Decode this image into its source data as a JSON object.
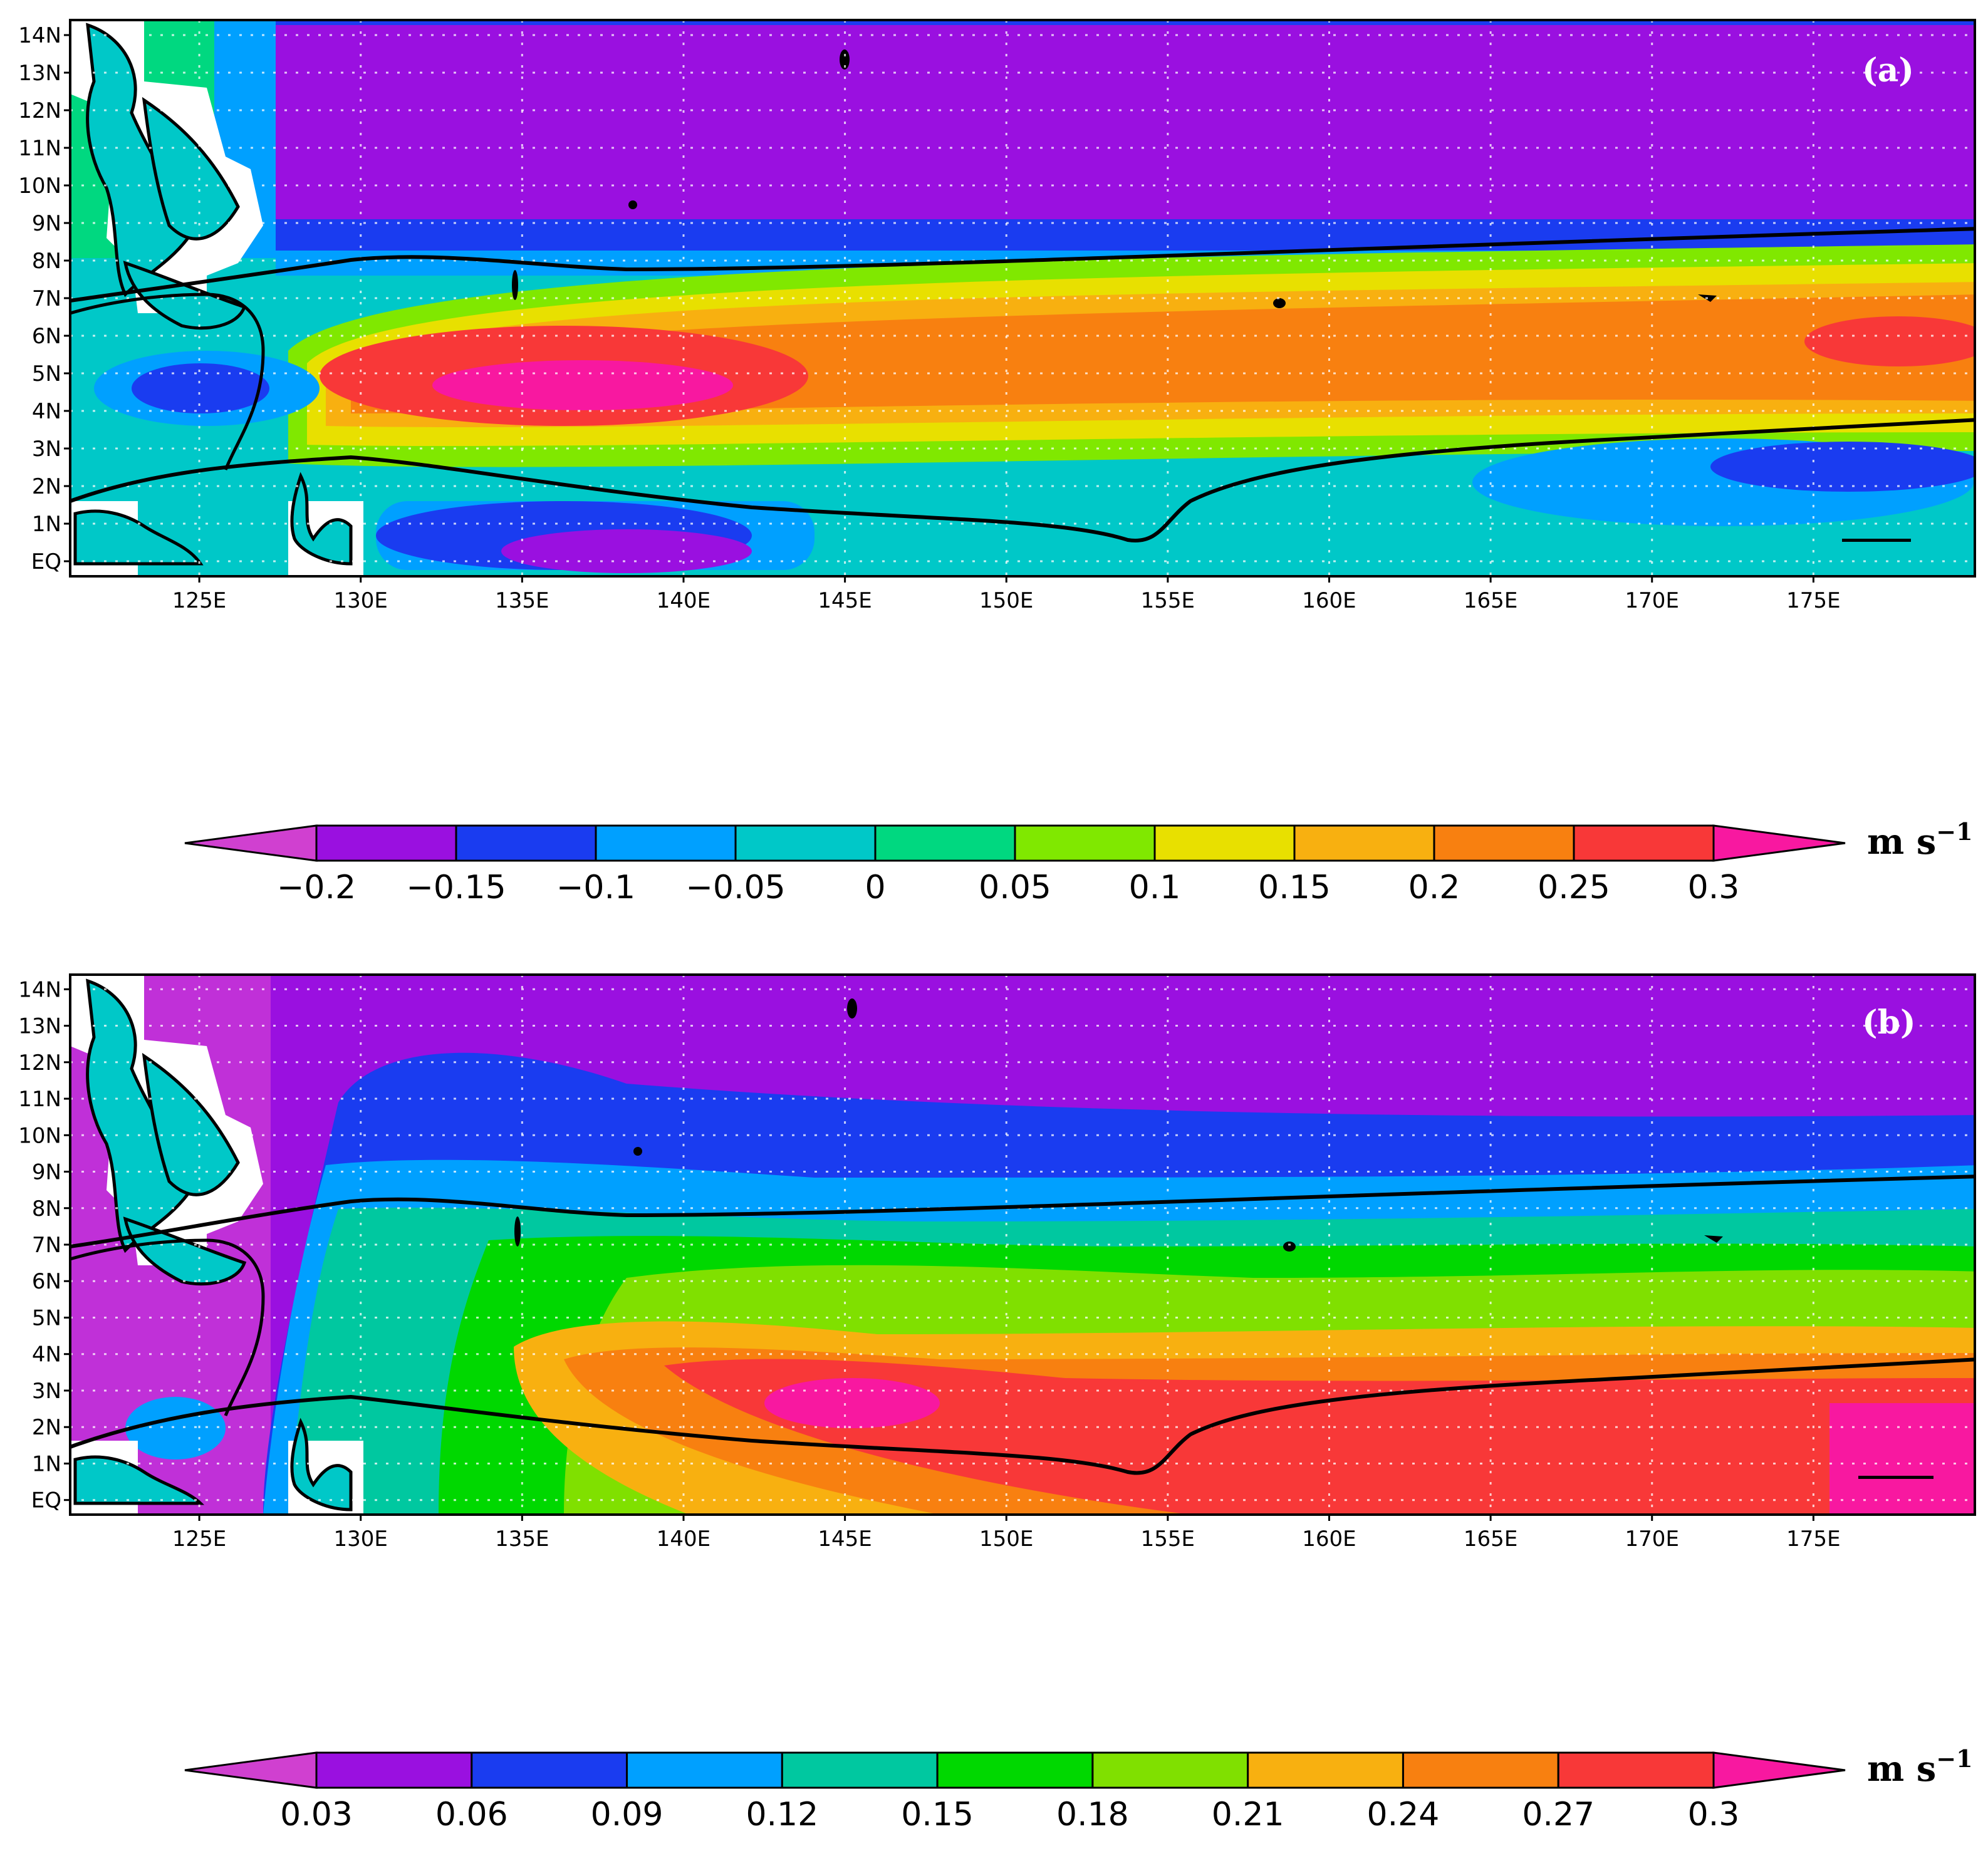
{
  "panels": [
    {
      "label": "(a)",
      "unit_base": "m s",
      "unit_exp": "−1",
      "colorbar": {
        "ticks": [
          "−0.2",
          "−0.15",
          "−0.1",
          "−0.05",
          "0",
          "0.05",
          "0.1",
          "0.15",
          "0.2",
          "0.25",
          "0.3"
        ],
        "colors": [
          "#d040d0",
          "#9a10e0",
          "#1a3cf0",
          "#00a0ff",
          "#00c8c8",
          "#00d880",
          "#80e800",
          "#e8e000",
          "#f8b010",
          "#f88010",
          "#f83838",
          "#f818a0"
        ]
      }
    },
    {
      "label": "(b)",
      "unit_base": "m s",
      "unit_exp": "−1",
      "colorbar": {
        "ticks": [
          "0.03",
          "0.06",
          "0.09",
          "0.12",
          "0.15",
          "0.18",
          "0.21",
          "0.24",
          "0.27",
          "0.3"
        ],
        "colors": [
          "#d040d0",
          "#9a10e0",
          "#1a3cf0",
          "#00a0ff",
          "#00c8a0",
          "#00d800",
          "#80e000",
          "#f8b010",
          "#f88010",
          "#f83838",
          "#f818a0"
        ]
      }
    }
  ],
  "axes": {
    "lon_ticks": [
      "125E",
      "130E",
      "135E",
      "140E",
      "145E",
      "150E",
      "155E",
      "160E",
      "165E",
      "170E",
      "175E"
    ],
    "lat_ticks": [
      "EQ",
      "1N",
      "2N",
      "3N",
      "4N",
      "5N",
      "6N",
      "7N",
      "8N",
      "9N",
      "10N",
      "11N",
      "12N",
      "13N",
      "14N"
    ],
    "lon_range": [
      121,
      180
    ],
    "lat_range": [
      -0.4,
      14.4
    ]
  },
  "chart_data": [
    {
      "type": "heatmap",
      "panel": "(a)",
      "x": "longitude",
      "y": "latitude",
      "xlim": [
        121,
        180
      ],
      "ylim": [
        -0.4,
        14.4
      ],
      "levels": [
        -0.2,
        -0.15,
        -0.1,
        -0.05,
        0,
        0.05,
        0.1,
        0.15,
        0.2,
        0.25,
        0.3
      ],
      "features": [
        {
          "kind": "min",
          "lon": [
            130,
            165
          ],
          "lat": [
            10.5,
            12.5
          ],
          "value": -0.2
        },
        {
          "kind": "max",
          "lon": [
            133,
            145
          ],
          "lat": [
            4,
            5
          ],
          "value": 0.3
        },
        {
          "kind": "max",
          "lon": [
            175,
            180
          ],
          "lat": [
            5,
            6.5
          ],
          "value": 0.3
        },
        {
          "kind": "min",
          "lon": [
            138,
            145
          ],
          "lat": [
            -0.4,
            0.7
          ],
          "value": -0.2
        }
      ],
      "black_lines": [
        {
          "lon": [
            121,
            125,
            129,
            133,
            140,
            150,
            160,
            170,
            180
          ],
          "lat": [
            7,
            7.5,
            8,
            8.1,
            7.8,
            8.1,
            8.3,
            8.6,
            8.9
          ]
        },
        {
          "lon": [
            121,
            125,
            129,
            133,
            140,
            150,
            154,
            156,
            160,
            170,
            180
          ],
          "lat": [
            1.4,
            2.6,
            2.7,
            2.2,
            1.6,
            1.2,
            0.6,
            1.6,
            2.6,
            3.2,
            3.7
          ]
        }
      ]
    },
    {
      "type": "heatmap",
      "panel": "(b)",
      "x": "longitude",
      "y": "latitude",
      "xlim": [
        121,
        180
      ],
      "ylim": [
        -0.4,
        14.4
      ],
      "levels": [
        0.03,
        0.06,
        0.09,
        0.12,
        0.15,
        0.18,
        0.21,
        0.24,
        0.27,
        0.3
      ],
      "features": [
        {
          "kind": "max",
          "lon": [
            142,
            148
          ],
          "lat": [
            2,
            3
          ],
          "value": 0.3
        },
        {
          "kind": "max",
          "lon": [
            175,
            180
          ],
          "lat": [
            0,
            2.5
          ],
          "value": 0.3
        },
        {
          "kind": "min",
          "lon": [
            121,
            180
          ],
          "lat": [
            11,
            14.4
          ],
          "value": 0.03
        }
      ],
      "black_lines": [
        {
          "lon": [
            121,
            125,
            129,
            133,
            140,
            150,
            160,
            170,
            180
          ],
          "lat": [
            7,
            7.5,
            8,
            8.1,
            7.8,
            8.1,
            8.3,
            8.6,
            8.9
          ]
        },
        {
          "lon": [
            121,
            125,
            129,
            133,
            140,
            150,
            154,
            156,
            160,
            170,
            180
          ],
          "lat": [
            1.4,
            2.6,
            2.7,
            2.2,
            1.6,
            1.2,
            0.6,
            1.6,
            2.6,
            3.2,
            3.7
          ]
        }
      ]
    }
  ]
}
